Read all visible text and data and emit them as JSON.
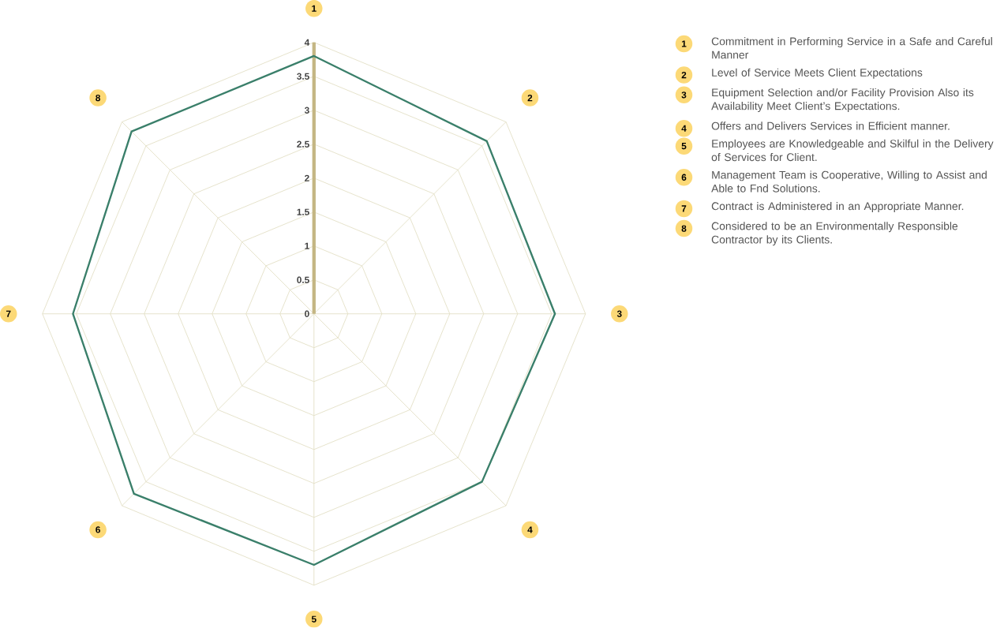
{
  "chart_data": {
    "type": "radar",
    "categories": [
      "1",
      "2",
      "3",
      "4",
      "5",
      "6",
      "7",
      "8"
    ],
    "series": [
      {
        "color": "#3a7f6a",
        "values": [
          3.8,
          3.6,
          3.55,
          3.5,
          3.7,
          3.75,
          3.55,
          3.8
        ]
      }
    ],
    "ylim": [
      0,
      4
    ],
    "yticks": [
      0,
      0.5,
      1,
      1.5,
      2,
      2.5,
      3,
      3.5,
      4
    ],
    "grid": true,
    "annotations": [
      "Commitment in Performing Service in a Safe and Careful Manner",
      "Level of Service Meets Client Expectations",
      "Equipment Selection and/or Facility Provision Also its Availability Meet Client’s Expectations.",
      "Offers and Delivers Services in Efficient manner.",
      "Employees are Knowledgeable and Skilful in the Delivery of Services for Client.",
      "Management Team is Cooperative, Willing to Assist and Able to Fnd Solutions.",
      "Contract is Administered in an Appropriate Manner.",
      "Considered to be an Environmentally Responsible Contractor by its Clients."
    ]
  }
}
